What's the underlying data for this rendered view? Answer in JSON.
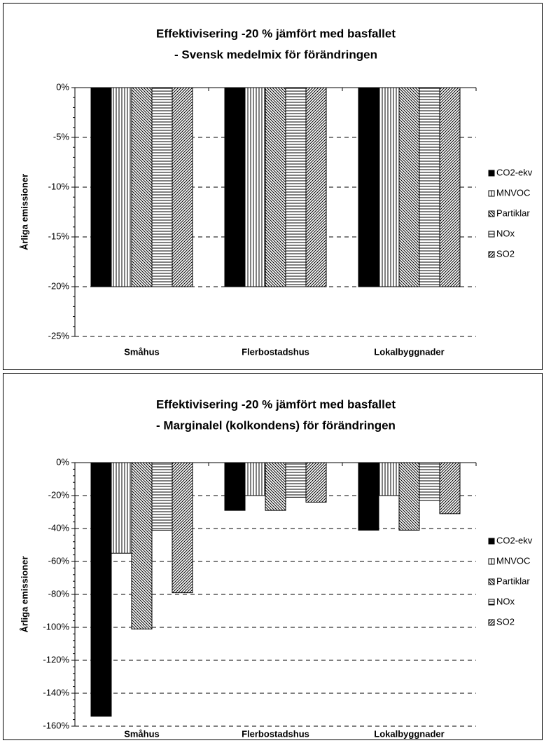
{
  "chart_data": [
    {
      "type": "bar",
      "title": "Effektivisering -20 %  jämfört med basfallet",
      "subtitle": "- Svensk medelmix för förändringen",
      "y_label": "Årliga emissioner",
      "categories": [
        "Småhus",
        "Flerbostadshus",
        "Lokalbyggnader"
      ],
      "series": [
        {
          "name": "CO2-ekv",
          "color": "#000000",
          "hatch": "solid",
          "values": [
            -20,
            -20,
            -20
          ]
        },
        {
          "name": "MNVOC",
          "color": "#000000",
          "hatch": "vertical",
          "values": [
            -20,
            -20,
            -20
          ]
        },
        {
          "name": "Partiklar",
          "color": "#000000",
          "hatch": "backslash",
          "values": [
            -20,
            -20,
            -20
          ]
        },
        {
          "name": "NOx",
          "color": "#000000",
          "hatch": "horizontal",
          "values": [
            -20,
            -20,
            -20
          ]
        },
        {
          "name": "SO2",
          "color": "#000000",
          "hatch": "slash",
          "values": [
            -20,
            -20,
            -20
          ]
        }
      ],
      "ylim": [
        -25,
        0
      ],
      "yticks": [
        {
          "value": -25,
          "label": "-25%"
        },
        {
          "value": -20,
          "label": "-20%"
        },
        {
          "value": -15,
          "label": "-15%"
        },
        {
          "value": -10,
          "label": "-10%"
        },
        {
          "value": -5,
          "label": "-5%"
        },
        {
          "value": 0,
          "label": "0%"
        }
      ],
      "grid": true,
      "legend": "right"
    },
    {
      "type": "bar",
      "title": "Effektivisering -20 % jämfört med basfallet",
      "subtitle": "- Marginalel (kolkondens) för förändringen",
      "y_label": "Årliga emissioner",
      "categories": [
        "Småhus",
        "Flerbostadshus",
        "Lokalbyggnader"
      ],
      "series": [
        {
          "name": "CO2-ekv",
          "color": "#000000",
          "hatch": "solid",
          "values": [
            -154,
            -29,
            -41
          ]
        },
        {
          "name": "MNVOC",
          "color": "#000000",
          "hatch": "vertical",
          "values": [
            -55,
            -20,
            -20
          ]
        },
        {
          "name": "Partiklar",
          "color": "#000000",
          "hatch": "backslash",
          "values": [
            -101,
            -29,
            -41
          ]
        },
        {
          "name": "NOx",
          "color": "#000000",
          "hatch": "horizontal",
          "values": [
            -41,
            -21,
            -23
          ]
        },
        {
          "name": "SO2",
          "color": "#000000",
          "hatch": "slash",
          "values": [
            -79,
            -24,
            -31
          ]
        }
      ],
      "ylim": [
        -160,
        0
      ],
      "yticks": [
        {
          "value": -160,
          "label": "-160%"
        },
        {
          "value": -140,
          "label": "-140%"
        },
        {
          "value": -120,
          "label": "-120%"
        },
        {
          "value": -100,
          "label": "-100%"
        },
        {
          "value": -80,
          "label": "-80%"
        },
        {
          "value": -60,
          "label": "-60%"
        },
        {
          "value": -40,
          "label": "-40%"
        },
        {
          "value": -20,
          "label": "-20%"
        },
        {
          "value": 0,
          "label": "0%"
        }
      ],
      "grid": true,
      "legend": "right"
    }
  ]
}
